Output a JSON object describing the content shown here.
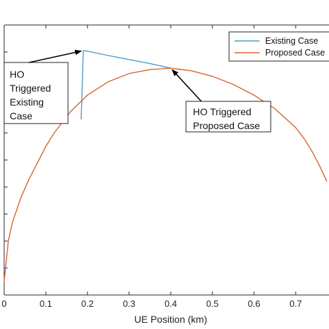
{
  "chart_data": {
    "type": "line",
    "xlabel": "UE  Position (km)",
    "ylabel": "",
    "xlim": [
      0,
      0.78
    ],
    "ylim": [
      0,
      1
    ],
    "x_ticks": [
      0,
      0.1,
      0.2,
      0.3,
      0.4,
      0.5,
      0.6,
      0.7
    ],
    "x_tick_labels": [
      "0",
      "0.1",
      "0.2",
      "0.3",
      "0.4",
      "0.5",
      "0.6",
      "0.7"
    ],
    "y_ticks": [
      0.1,
      0.2,
      0.3,
      0.4,
      0.5,
      0.6,
      0.7,
      0.8,
      0.9
    ],
    "grid": false,
    "legend_placement": "top-right",
    "series": [
      {
        "name": "Existing Case",
        "color": "#4a9cc8",
        "x": [
          0.185,
          0.19,
          0.2,
          0.25,
          0.3,
          0.35,
          0.4
        ],
        "y": [
          0.65,
          0.905,
          0.903,
          0.887,
          0.872,
          0.857,
          0.84
        ]
      },
      {
        "name": "Proposed Case",
        "color": "#d9622b",
        "x": [
          0.0,
          0.01,
          0.02,
          0.04,
          0.06,
          0.08,
          0.1,
          0.12,
          0.14,
          0.16,
          0.18,
          0.2,
          0.25,
          0.3,
          0.35,
          0.4,
          0.45,
          0.5,
          0.55,
          0.6,
          0.65,
          0.7,
          0.72,
          0.74,
          0.76,
          0.775
        ],
        "y": [
          0.05,
          0.2,
          0.27,
          0.36,
          0.43,
          0.49,
          0.55,
          0.6,
          0.64,
          0.68,
          0.71,
          0.74,
          0.79,
          0.82,
          0.835,
          0.84,
          0.83,
          0.81,
          0.78,
          0.74,
          0.69,
          0.62,
          0.58,
          0.53,
          0.47,
          0.42
        ]
      }
    ],
    "annotations": [
      {
        "lines": [
          "HO",
          "Triggered",
          "Existing",
          "Case"
        ],
        "target_x": 0.19,
        "target_y": 0.905
      },
      {
        "lines": [
          "HO Triggered",
          "Proposed Case"
        ],
        "target_x": 0.4,
        "target_y": 0.84
      }
    ]
  }
}
